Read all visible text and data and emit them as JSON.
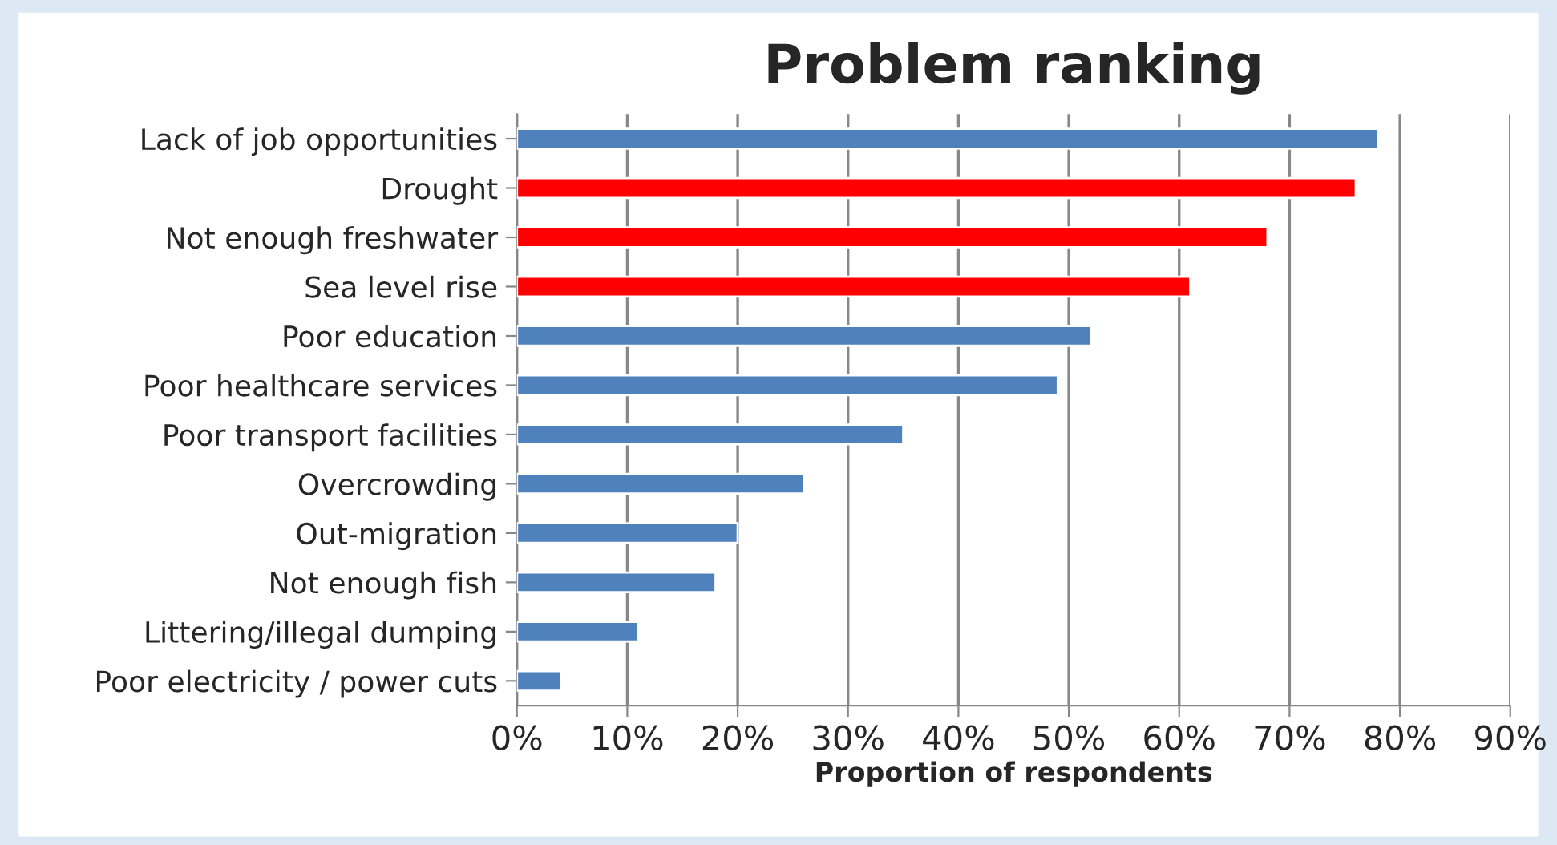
{
  "chart_data": {
    "type": "bar",
    "orientation": "horizontal",
    "title": "Problem ranking",
    "xlabel": "Proportion of respondents",
    "categories": [
      "Lack of job opportunities",
      "Drought",
      "Not enough freshwater",
      "Sea level rise",
      "Poor education",
      "Poor healthcare services",
      "Poor transport facilities",
      "Overcrowding",
      "Out-migration",
      "Not enough fish",
      "Littering/illegal dumping",
      "Poor electricity / power cuts"
    ],
    "values": [
      78,
      76,
      68,
      61,
      52,
      49,
      35,
      26,
      20,
      18,
      11,
      4
    ],
    "colors": [
      "#4f81bd",
      "#ff0000",
      "#ff0000",
      "#ff0000",
      "#4f81bd",
      "#4f81bd",
      "#4f81bd",
      "#4f81bd",
      "#4f81bd",
      "#4f81bd",
      "#4f81bd",
      "#4f81bd"
    ],
    "xlim": [
      0,
      90
    ],
    "xticks": [
      {
        "value": 0,
        "label": "0%"
      },
      {
        "value": 10,
        "label": "10%"
      },
      {
        "value": 20,
        "label": "20%"
      },
      {
        "value": 30,
        "label": "30%"
      },
      {
        "value": 40,
        "label": "40%"
      },
      {
        "value": 50,
        "label": "50%"
      },
      {
        "value": 60,
        "label": "60%"
      },
      {
        "value": 70,
        "label": "70%"
      },
      {
        "value": 80,
        "label": "80%"
      },
      {
        "value": 90,
        "label": "90%"
      }
    ],
    "grid": "x",
    "legend": false
  }
}
